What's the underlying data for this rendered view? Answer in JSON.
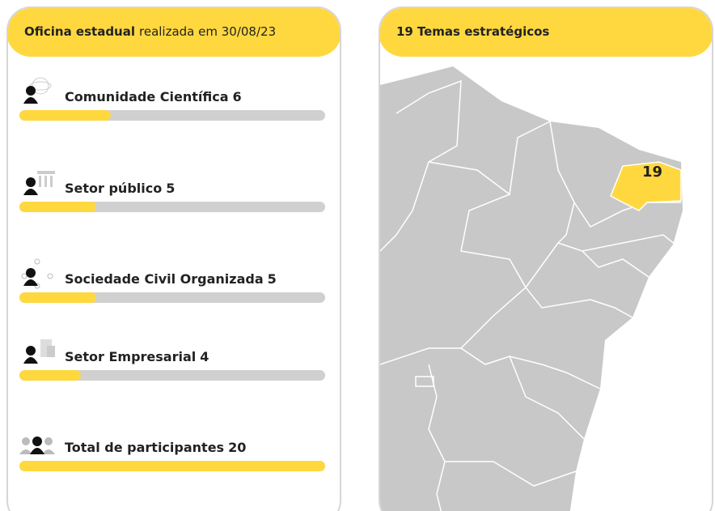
{
  "header": {
    "title": "Oficina estadual",
    "subtitle": "realizada em 30/08/23"
  },
  "groups": [
    {
      "name": "Comunidade Científica",
      "value": 6
    },
    {
      "name": "Setor público",
      "value": 5
    },
    {
      "name": "Sociedade Civil Organizada",
      "value": 5
    },
    {
      "name": "Setor Empresarial",
      "value": 4
    }
  ],
  "total": {
    "name": "Total de participantes",
    "value": 20
  },
  "map": {
    "count": 19,
    "label": "Temas estratégicos"
  }
}
